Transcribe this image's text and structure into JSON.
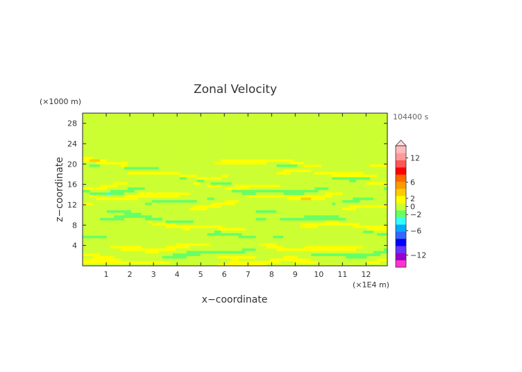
{
  "chart_data": {
    "type": "heatmap",
    "title": "Zonal Velocity",
    "xlabel": "x−coordinate",
    "ylabel": "z−coordinate",
    "x_unit": "(×1E4 m)",
    "y_unit": "(×1000 m)",
    "time_label": "104400 s",
    "xlim": [
      0,
      12.9
    ],
    "ylim": [
      0,
      30
    ],
    "x_ticks": [
      1,
      2,
      3,
      4,
      5,
      6,
      7,
      8,
      9,
      10,
      11,
      12
    ],
    "y_ticks": [
      4,
      8,
      12,
      16,
      20,
      24,
      28
    ],
    "colorbar_ticks": [
      12,
      6,
      2,
      0,
      -2,
      -6,
      -12
    ],
    "colorbar_range": [
      -15,
      15
    ],
    "colorbar_colors": [
      "#ff33cc",
      "#9900cc",
      "#6633ff",
      "#0000ff",
      "#3366ff",
      "#00aaff",
      "#33ffff",
      "#66ff66",
      "#ccff33",
      "#ffff00",
      "#ffcc00",
      "#ff9900",
      "#ff6600",
      "#ff0000",
      "#ff5555",
      "#ff9999",
      "#ffbbbb"
    ],
    "bands": [
      {
        "z": 29.4,
        "value": 0.5,
        "thickness": 0.6
      },
      {
        "z": 27.5,
        "value": -0.3,
        "thickness": 0.8
      },
      {
        "z": 25.5,
        "value": 0.2,
        "thickness": 0.9
      },
      {
        "z": 23.5,
        "value": -0.2,
        "thickness": 0.7
      },
      {
        "z": 22.0,
        "value": 0.6,
        "thickness": 0.7
      },
      {
        "z": 21.2,
        "value": -0.8,
        "thickness": 0.4
      },
      {
        "z": 20.1,
        "value": 2.5,
        "thickness": 0.45
      },
      {
        "z": 19.0,
        "value": -1.4,
        "thickness": 0.45
      },
      {
        "z": 18.0,
        "value": 2.4,
        "thickness": 0.45
      },
      {
        "z": 17.0,
        "value": -1.8,
        "thickness": 0.4
      },
      {
        "z": 16.0,
        "value": 2.0,
        "thickness": 0.45
      },
      {
        "z": 15.0,
        "value": -2.3,
        "thickness": 0.45
      },
      {
        "z": 14.0,
        "value": 2.4,
        "thickness": 0.5
      },
      {
        "z": 12.8,
        "value": -1.2,
        "thickness": 0.5
      },
      {
        "z": 11.8,
        "value": 1.6,
        "thickness": 0.5
      },
      {
        "z": 10.2,
        "value": -0.9,
        "thickness": 0.6
      },
      {
        "z": 9.0,
        "value": -1.7,
        "thickness": 0.5
      },
      {
        "z": 7.8,
        "value": 2.3,
        "thickness": 0.5
      },
      {
        "z": 6.2,
        "value": -1.5,
        "thickness": 0.5
      },
      {
        "z": 5.0,
        "value": 0.6,
        "thickness": 0.5
      },
      {
        "z": 3.8,
        "value": 2.2,
        "thickness": 0.5
      },
      {
        "z": 2.6,
        "value": -1.9,
        "thickness": 0.5
      },
      {
        "z": 1.6,
        "value": 1.2,
        "thickness": 0.5
      },
      {
        "z": 0.5,
        "value": 2.3,
        "thickness": 0.5
      }
    ]
  }
}
